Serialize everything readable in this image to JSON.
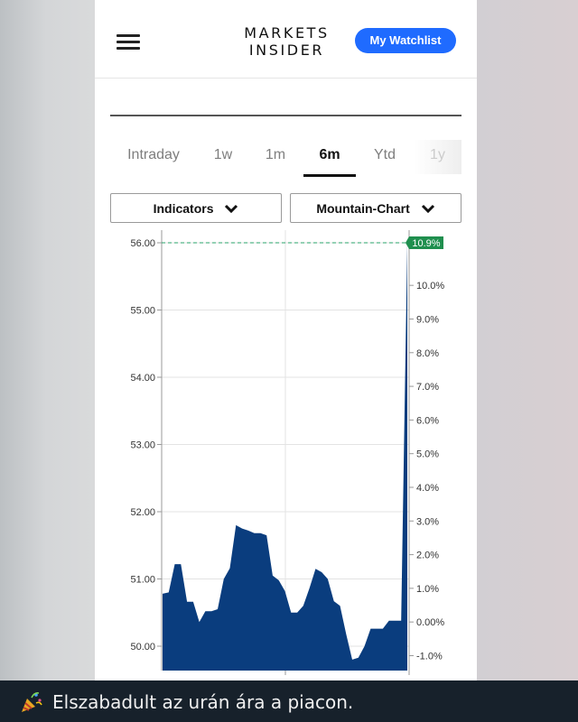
{
  "header": {
    "logo_line1": "MARKETS",
    "logo_line2": "INSIDER",
    "watchlist_label": "My Watchlist"
  },
  "tabs": [
    {
      "label": "Intraday",
      "active": false
    },
    {
      "label": "1w",
      "active": false
    },
    {
      "label": "1m",
      "active": false
    },
    {
      "label": "6m",
      "active": true
    },
    {
      "label": "Ytd",
      "active": false
    },
    {
      "label": "1y",
      "active": false
    }
  ],
  "controls": {
    "indicators_label": "Indicators",
    "charttype_label": "Mountain-Chart"
  },
  "chart_data": {
    "type": "area",
    "title": "",
    "xlabel": "",
    "ylabel": "",
    "ylim": [
      49.6,
      56.15
    ],
    "y_ticks": [
      "56.00",
      "55.00",
      "54.00",
      "53.00",
      "52.00",
      "51.00",
      "50.00"
    ],
    "y2_ticks": [
      "10.0%",
      "9.0%",
      "8.0%",
      "7.0%",
      "6.0%",
      "5.0%",
      "4.0%",
      "3.0%",
      "2.0%",
      "1.0%",
      "0.00%",
      "-1.0%"
    ],
    "last_change_label": "10.9%",
    "grid": true,
    "fill_color": "#0a3d7e",
    "badge_color": "#1f8f4e",
    "values": [
      50.78,
      50.8,
      51.22,
      51.22,
      50.66,
      50.66,
      50.36,
      50.52,
      50.52,
      50.55,
      51.0,
      51.16,
      51.8,
      51.75,
      51.72,
      51.68,
      51.68,
      51.65,
      51.05,
      50.98,
      50.82,
      50.5,
      50.5,
      50.6,
      50.86,
      51.15,
      51.1,
      51.0,
      50.67,
      50.6,
      50.18,
      49.8,
      49.83,
      50.0,
      50.26,
      50.26,
      50.26,
      50.38,
      50.38,
      50.38,
      56.0
    ]
  },
  "bottom_message": {
    "text": "Elszabadult az urán ára a piacon."
  }
}
